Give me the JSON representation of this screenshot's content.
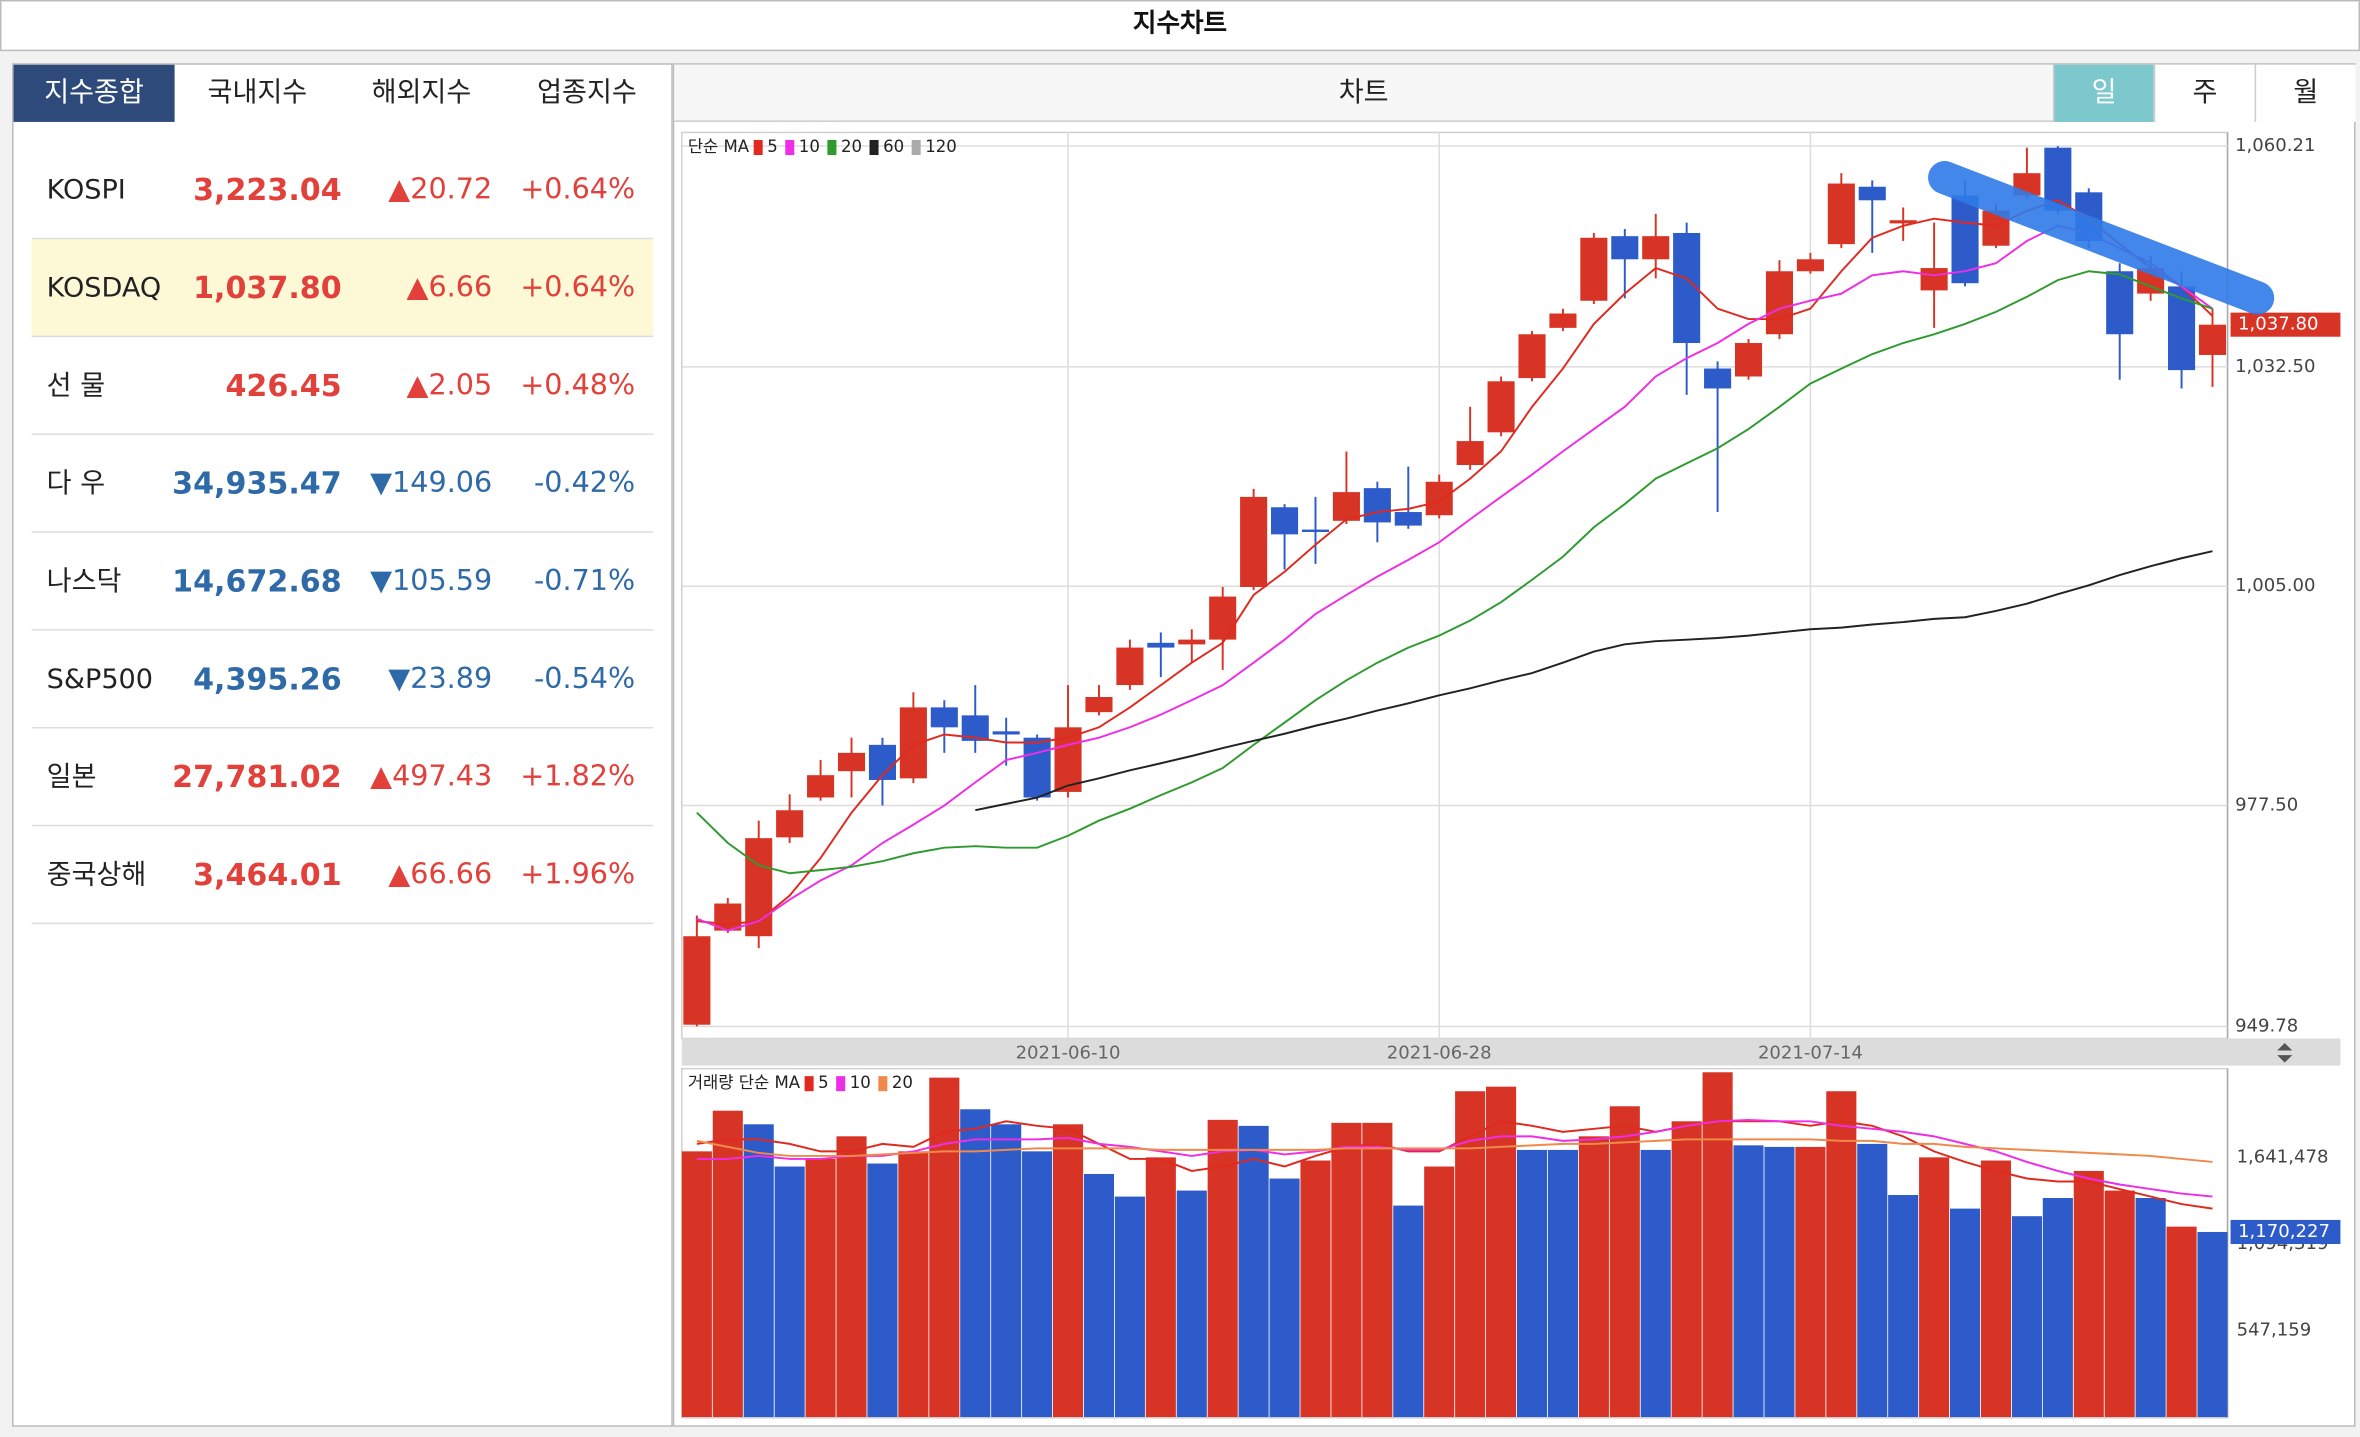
{
  "header": {
    "title": "지수차트"
  },
  "index_panel": {
    "tabs": [
      "지수종합",
      "국내지수",
      "해외지수",
      "업종지수"
    ],
    "active_tab": 0,
    "selected_row": 1,
    "rows": [
      {
        "name": "KOSPI",
        "value": "3,223.04",
        "change": "▲20.72",
        "percent": "+0.64%",
        "color": "#e2403a"
      },
      {
        "name": "KOSDAQ",
        "value": "1,037.80",
        "change": "▲6.66",
        "percent": "+0.64%",
        "color": "#e2403a"
      },
      {
        "name": "선 물",
        "value": "426.45",
        "change": "▲2.05",
        "percent": "+0.48%",
        "color": "#e2403a"
      },
      {
        "name": "다 우",
        "value": "34,935.47",
        "change": "▼149.06",
        "percent": "-0.42%",
        "color": "#2f6aa8"
      },
      {
        "name": "나스닥",
        "value": "14,672.68",
        "change": "▼105.59",
        "percent": "-0.71%",
        "color": "#2f6aa8"
      },
      {
        "name": "S&P500",
        "value": "4,395.26",
        "change": "▼23.89",
        "percent": "-0.54%",
        "color": "#2f6aa8"
      },
      {
        "name": "일본",
        "value": "27,781.02",
        "change": "▲497.43",
        "percent": "+1.82%",
        "color": "#e2403a"
      },
      {
        "name": "중국상해",
        "value": "3,464.01",
        "change": "▲66.66",
        "percent": "+1.96%",
        "color": "#e2403a"
      }
    ]
  },
  "chart_panel": {
    "title": "차트",
    "periods": [
      "일",
      "주",
      "월"
    ],
    "active_period": 0
  },
  "chart_data": [
    {
      "type": "candlestick",
      "ma_label": "단순 MA",
      "up_color": "#d83426",
      "down_color": "#2d5bc9",
      "grid": true,
      "categories": [
        null,
        null,
        null,
        null,
        null,
        null,
        null,
        null,
        null,
        null,
        null,
        null,
        "2021-06-10",
        null,
        null,
        null,
        null,
        null,
        null,
        null,
        null,
        null,
        null,
        null,
        "2021-06-28",
        null,
        null,
        null,
        null,
        null,
        null,
        null,
        null,
        null,
        null,
        null,
        "2021-07-14",
        null,
        null,
        null,
        null,
        null,
        null,
        null,
        null,
        null,
        null,
        null,
        null,
        null
      ],
      "open": [
        950.0,
        961.8,
        961.1,
        973.5,
        978.5,
        981.8,
        985.1,
        980.9,
        989.8,
        988.8,
        986.8,
        986.0,
        979.2,
        989.2,
        992.6,
        997.9,
        997.7,
        998.3,
        1004.9,
        1014.9,
        1012.1,
        1013.2,
        1017.3,
        1014.3,
        1013.9,
        1020.2,
        1024.3,
        1031.1,
        1037.4,
        1040.8,
        1048.9,
        1046.0,
        1049.3,
        1032.3,
        1031.3,
        1036.6,
        1044.5,
        1047.9,
        1055.1,
        1050.5,
        1042.1,
        1054.0,
        1047.7,
        1054.0,
        1060.0,
        1054.4,
        1044.5,
        1041.7,
        1042.6,
        1034.0
      ],
      "high": [
        963.7,
        965.9,
        975.6,
        978.9,
        983.2,
        986.0,
        986.0,
        991.7,
        990.7,
        992.6,
        988.5,
        986.4,
        992.6,
        992.6,
        998.3,
        999.2,
        999.6,
        1004.9,
        1017.2,
        1015.3,
        1016.2,
        1021.9,
        1018.1,
        1020.0,
        1019.0,
        1027.5,
        1031.3,
        1037.0,
        1039.8,
        1049.3,
        1049.8,
        1051.7,
        1050.6,
        1033.2,
        1036.0,
        1045.9,
        1046.8,
        1056.8,
        1055.9,
        1052.5,
        1050.6,
        1055.9,
        1053.0,
        1060.0,
        1060.2,
        1054.9,
        1045.5,
        1046.4,
        1044.5,
        1039.8
      ],
      "low": [
        949.8,
        961.5,
        959.6,
        972.8,
        978.1,
        978.5,
        977.5,
        980.3,
        984.1,
        984.1,
        982.5,
        978.1,
        978.5,
        988.8,
        992.0,
        993.6,
        995.4,
        994.5,
        1004.5,
        1007.1,
        1007.8,
        1012.8,
        1010.5,
        1012.2,
        1013.5,
        1019.6,
        1023.8,
        1030.7,
        1037.0,
        1040.4,
        1041.1,
        1043.6,
        1029.0,
        1014.3,
        1030.9,
        1036.0,
        1044.2,
        1047.4,
        1046.8,
        1048.3,
        1037.4,
        1042.6,
        1047.4,
        1053.6,
        1051.7,
        1047.4,
        1030.9,
        1040.8,
        1029.8,
        1030.0
      ],
      "close": [
        961.1,
        965.2,
        973.4,
        976.9,
        981.3,
        984.1,
        980.7,
        989.8,
        987.3,
        985.6,
        986.4,
        978.5,
        987.3,
        991.1,
        997.3,
        997.3,
        998.3,
        1003.7,
        1016.2,
        1011.5,
        1011.8,
        1016.8,
        1013.0,
        1012.6,
        1018.1,
        1023.2,
        1030.7,
        1036.6,
        1039.2,
        1048.7,
        1046.0,
        1048.9,
        1035.5,
        1029.8,
        1035.5,
        1044.5,
        1046.0,
        1055.5,
        1053.4,
        1050.9,
        1044.9,
        1043.0,
        1052.1,
        1056.8,
        1052.1,
        1048.3,
        1036.6,
        1044.9,
        1032.1,
        1037.8
      ],
      "last_label": "1,037.80",
      "ylim": [
        949.78,
        1060.21
      ],
      "yticks": [
        949.78,
        {
          "value": 977.5,
          "label": "977.50"
        },
        {
          "value": 1005,
          "label": "1,005.00"
        },
        {
          "value": 1032.5,
          "label": "1,032.50"
        },
        {
          "value": 1060.21,
          "label": "1,060.21"
        }
      ],
      "series": [
        {
          "name": "5",
          "color": "#e02a1f",
          "values": [
            963.0,
            962.6,
            963.0,
            966.2,
            970.9,
            976.6,
            981.3,
            985.1,
            986.4,
            986.0,
            985.4,
            985.4,
            986.0,
            987.3,
            989.8,
            992.6,
            995.4,
            997.9,
            1003.9,
            1006.8,
            1010.2,
            1013.4,
            1014.3,
            1014.7,
            1015.6,
            1018.5,
            1021.9,
            1027.5,
            1032.3,
            1037.9,
            1041.7,
            1044.9,
            1043.6,
            1039.8,
            1038.5,
            1038.5,
            1039.8,
            1044.5,
            1048.7,
            1050.2,
            1051.1,
            1050.6,
            1050.2,
            1052.1,
            1053.4,
            1051.1,
            1047.9,
            1044.9,
            1042.6,
            1038.9
          ]
        },
        {
          "name": "10",
          "color": "#ee2ee6",
          "values": [
            963.3,
            961.8,
            963.0,
            965.7,
            968.1,
            970.0,
            972.8,
            975.1,
            977.5,
            980.4,
            983.2,
            984.1,
            985.1,
            986.0,
            987.3,
            988.9,
            990.7,
            992.6,
            995.4,
            998.3,
            1001.5,
            1003.9,
            1006.2,
            1008.3,
            1010.5,
            1013.4,
            1016.2,
            1019.0,
            1021.9,
            1024.7,
            1027.5,
            1031.3,
            1033.6,
            1035.5,
            1037.9,
            1039.8,
            1040.8,
            1041.7,
            1044.0,
            1044.5,
            1044.0,
            1044.5,
            1045.5,
            1048.3,
            1050.2,
            1049.3,
            1047.4,
            1045.5,
            1042.6,
            1039.8
          ]
        },
        {
          "name": "20",
          "color": "#2f9a2f",
          "values": [
            976.6,
            972.8,
            970.0,
            969.0,
            969.4,
            969.8,
            970.5,
            971.5,
            972.2,
            972.4,
            972.2,
            972.2,
            973.7,
            975.6,
            977.1,
            978.8,
            980.4,
            982.2,
            985.1,
            987.9,
            990.7,
            993.2,
            995.4,
            997.3,
            998.8,
            1000.7,
            1003.0,
            1005.8,
            1008.7,
            1012.4,
            1015.3,
            1018.5,
            1020.4,
            1022.3,
            1024.7,
            1027.5,
            1030.4,
            1032.3,
            1034.1,
            1035.5,
            1036.6,
            1037.9,
            1039.4,
            1041.3,
            1043.4,
            1044.5,
            1044.1,
            1042.6,
            1041.1,
            1039.8
          ]
        },
        {
          "name": "60",
          "color": "#222222",
          "values": [
            null,
            null,
            null,
            null,
            null,
            null,
            null,
            null,
            null,
            976.9,
            977.7,
            978.5,
            980.0,
            980.9,
            981.9,
            982.8,
            983.7,
            984.7,
            985.6,
            986.5,
            987.5,
            988.4,
            989.4,
            990.3,
            991.3,
            992.2,
            993.2,
            994.1,
            995.4,
            996.8,
            997.7,
            998.1,
            998.3,
            998.5,
            998.8,
            999.2,
            999.6,
            999.8,
            1000.2,
            1000.5,
            1000.9,
            1001.1,
            1001.9,
            1002.8,
            1004.0,
            1005.1,
            1006.4,
            1007.5,
            1008.5,
            1009.4
          ]
        },
        {
          "name": "120",
          "color": "#aaaaaa"
        }
      ]
    },
    {
      "type": "bar",
      "ma_label": "거래량 단순 MA",
      "values": [
        1680000,
        1937000,
        1851000,
        1584000,
        1632000,
        1775000,
        1603000,
        1680000,
        2146000,
        1946000,
        1851000,
        1680000,
        1851000,
        1537000,
        1394000,
        1642000,
        1432000,
        1879000,
        1841000,
        1508000,
        1622000,
        1860000,
        1860000,
        1337000,
        1584000,
        2060000,
        2089000,
        1689000,
        1689000,
        1775000,
        1965000,
        1689000,
        1870000,
        2180000,
        1718000,
        1708000,
        1708000,
        2060000,
        1727000,
        1404000,
        1642000,
        1318000,
        1622000,
        1270000,
        1385000,
        1556000,
        1432000,
        1385000,
        1204000,
        1170227
      ],
      "colors": [
        "#d83426",
        "#d83426",
        "#2d5bc9",
        "#2d5bc9",
        "#d83426",
        "#d83426",
        "#2d5bc9",
        "#d83426",
        "#d83426",
        "#2d5bc9",
        "#2d5bc9",
        "#2d5bc9",
        "#d83426",
        "#2d5bc9",
        "#2d5bc9",
        "#d83426",
        "#2d5bc9",
        "#d83426",
        "#2d5bc9",
        "#2d5bc9",
        "#d83426",
        "#d83426",
        "#d83426",
        "#2d5bc9",
        "#d83426",
        "#d83426",
        "#d83426",
        "#2d5bc9",
        "#2d5bc9",
        "#d83426",
        "#d83426",
        "#2d5bc9",
        "#d83426",
        "#d83426",
        "#2d5bc9",
        "#2d5bc9",
        "#d83426",
        "#d83426",
        "#2d5bc9",
        "#2d5bc9",
        "#d83426",
        "#2d5bc9",
        "#d83426",
        "#2d5bc9",
        "#2d5bc9",
        "#d83426",
        "#d83426",
        "#2d5bc9",
        "#d83426",
        "#2d5bc9"
      ],
      "last_label": "1,170,227",
      "ylim": [
        0,
        2184000
      ],
      "yticks": [
        {
          "value": 547159,
          "label": "547,159"
        },
        {
          "value": 1094319,
          "label": "1,094,319"
        },
        {
          "value": 1641478,
          "label": "1,641,478"
        }
      ],
      "series": [
        {
          "name": "5",
          "color": "#e02a1f",
          "values": [
            1727000,
            1756000,
            1756000,
            1727000,
            1680000,
            1680000,
            1727000,
            1708000,
            1803000,
            1822000,
            1870000,
            1841000,
            1822000,
            1727000,
            1632000,
            1632000,
            1556000,
            1584000,
            1632000,
            1584000,
            1651000,
            1708000,
            1727000,
            1680000,
            1680000,
            1775000,
            1870000,
            1841000,
            1803000,
            1822000,
            1841000,
            1803000,
            1841000,
            1870000,
            1870000,
            1870000,
            1841000,
            1870000,
            1841000,
            1775000,
            1680000,
            1613000,
            1556000,
            1508000,
            1489000,
            1489000,
            1442000,
            1394000,
            1347000,
            1318000
          ]
        },
        {
          "name": "10",
          "color": "#ee2ee6",
          "values": [
            1632000,
            1632000,
            1651000,
            1632000,
            1632000,
            1651000,
            1651000,
            1680000,
            1727000,
            1756000,
            1756000,
            1756000,
            1765000,
            1727000,
            1708000,
            1680000,
            1651000,
            1680000,
            1689000,
            1661000,
            1680000,
            1708000,
            1708000,
            1689000,
            1689000,
            1746000,
            1775000,
            1775000,
            1746000,
            1756000,
            1775000,
            1803000,
            1841000,
            1870000,
            1879000,
            1870000,
            1870000,
            1841000,
            1822000,
            1803000,
            1775000,
            1727000,
            1680000,
            1613000,
            1556000,
            1508000,
            1470000,
            1442000,
            1413000,
            1394000
          ]
        },
        {
          "name": "20",
          "color": "#f08a4b",
          "values": [
            1746000,
            1708000,
            1670000,
            1651000,
            1651000,
            1651000,
            1661000,
            1670000,
            1680000,
            1680000,
            1689000,
            1699000,
            1699000,
            1699000,
            1699000,
            1689000,
            1689000,
            1689000,
            1689000,
            1689000,
            1689000,
            1699000,
            1699000,
            1699000,
            1699000,
            1699000,
            1708000,
            1718000,
            1727000,
            1727000,
            1737000,
            1746000,
            1756000,
            1756000,
            1756000,
            1756000,
            1756000,
            1746000,
            1746000,
            1727000,
            1727000,
            1708000,
            1699000,
            1689000,
            1680000,
            1670000,
            1661000,
            1651000,
            1632000,
            1613000
          ]
        }
      ]
    }
  ]
}
